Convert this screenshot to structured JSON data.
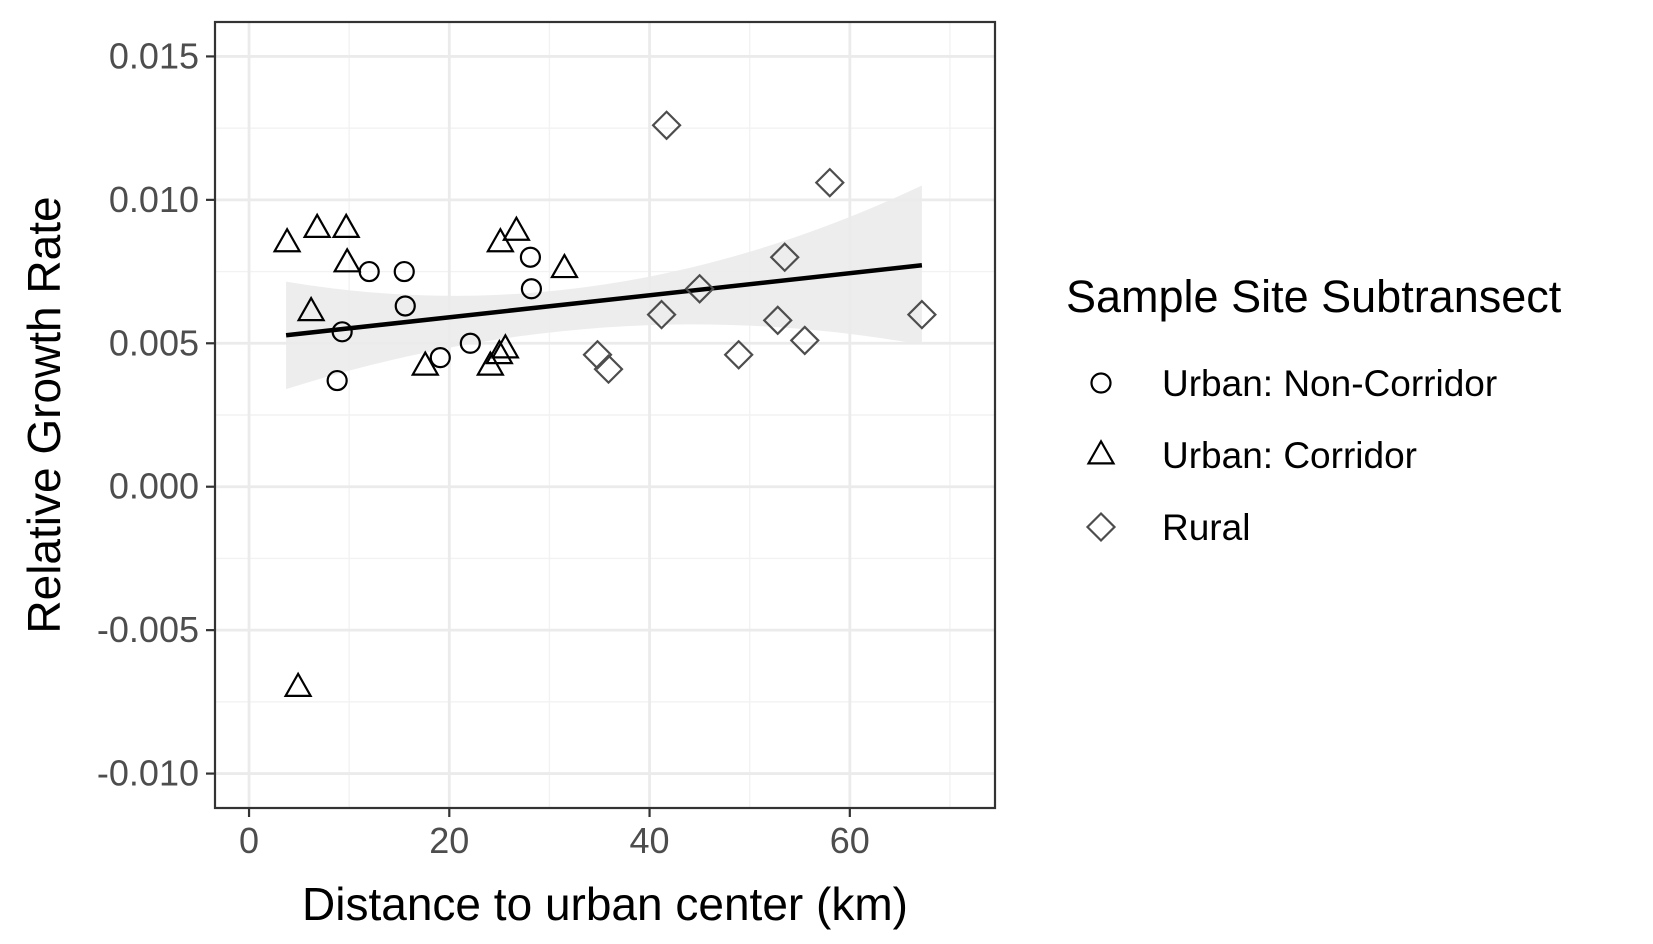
{
  "chart_data": {
    "type": "scatter",
    "title": "",
    "xlabel": "Distance to urban center (km)",
    "ylabel": "Relative Growth Rate",
    "xlim": [
      -3.4,
      74.5
    ],
    "ylim": [
      -0.0112,
      0.0162
    ],
    "x_ticks": [
      0,
      20,
      40,
      60
    ],
    "x_tick_labels": [
      "0",
      "20",
      "40",
      "60"
    ],
    "y_ticks": [
      -0.01,
      -0.005,
      0.0,
      0.005,
      0.01,
      0.015
    ],
    "y_tick_labels": [
      "-0.010",
      "-0.005",
      "0.000",
      "0.005",
      "0.010",
      "0.015"
    ],
    "grid": true,
    "legend": {
      "title": "Sample Site Subtransect",
      "placement": "right"
    },
    "series": [
      {
        "name": "Urban: Non-Corridor",
        "shape": "circle",
        "color": "#000000",
        "points": [
          {
            "x": 8.8,
            "y": 0.0037
          },
          {
            "x": 9.3,
            "y": 0.0054
          },
          {
            "x": 12.0,
            "y": 0.0075
          },
          {
            "x": 15.5,
            "y": 0.0075
          },
          {
            "x": 15.6,
            "y": 0.0063
          },
          {
            "x": 19.1,
            "y": 0.0045
          },
          {
            "x": 22.1,
            "y": 0.005
          },
          {
            "x": 28.1,
            "y": 0.008
          },
          {
            "x": 28.2,
            "y": 0.0069
          }
        ]
      },
      {
        "name": "Urban: Corridor",
        "shape": "triangle",
        "color": "#000000",
        "points": [
          {
            "x": 3.8,
            "y": 0.0085
          },
          {
            "x": 4.9,
            "y": -0.007
          },
          {
            "x": 6.2,
            "y": 0.0061
          },
          {
            "x": 6.8,
            "y": 0.009
          },
          {
            "x": 9.7,
            "y": 0.009
          },
          {
            "x": 9.8,
            "y": 0.0078
          },
          {
            "x": 17.6,
            "y": 0.0042
          },
          {
            "x": 24.1,
            "y": 0.0042
          },
          {
            "x": 25.0,
            "y": 0.0046
          },
          {
            "x": 25.1,
            "y": 0.0085
          },
          {
            "x": 25.6,
            "y": 0.0048
          },
          {
            "x": 26.7,
            "y": 0.0089
          },
          {
            "x": 31.5,
            "y": 0.0076
          }
        ]
      },
      {
        "name": "Rural",
        "shape": "diamond",
        "color": "#4d4d4d",
        "points": [
          {
            "x": 34.8,
            "y": 0.0046
          },
          {
            "x": 35.9,
            "y": 0.0041
          },
          {
            "x": 41.2,
            "y": 0.006
          },
          {
            "x": 41.7,
            "y": 0.0126
          },
          {
            "x": 45.0,
            "y": 0.0069
          },
          {
            "x": 48.9,
            "y": 0.0046
          },
          {
            "x": 52.8,
            "y": 0.0058
          },
          {
            "x": 53.5,
            "y": 0.008
          },
          {
            "x": 55.5,
            "y": 0.0051
          },
          {
            "x": 58.0,
            "y": 0.0106
          },
          {
            "x": 67.2,
            "y": 0.006
          }
        ]
      }
    ],
    "trend_line": {
      "x_start": 3.7,
      "x_end": 67.2,
      "y_start": 0.00528,
      "y_end": 0.00772,
      "ci_lower_start": 0.0034,
      "ci_upper_start": 0.00715,
      "ci_lower_mid": 0.00555,
      "ci_upper_mid": 0.00705,
      "ci_lower_end": 0.00495,
      "ci_upper_end": 0.0105,
      "x_mid": 35.5,
      "color": "#000000",
      "ci_color": "#ebebeb"
    }
  }
}
